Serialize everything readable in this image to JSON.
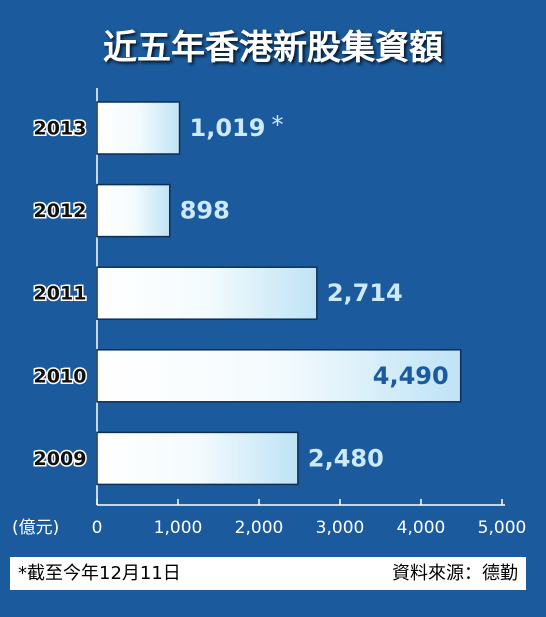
{
  "chart_data": {
    "type": "bar",
    "orientation": "horizontal",
    "title": "近五年香港新股集資額",
    "categories": [
      "2013",
      "2012",
      "2011",
      "2010",
      "2009"
    ],
    "values": [
      1019,
      898,
      2714,
      4490,
      2480
    ],
    "value_labels": [
      "1,019",
      "898",
      "2,714",
      "4,490",
      "2,480"
    ],
    "color": "#bfe3f5",
    "annotation": "*",
    "x_label": "(億元)",
    "xlim": [
      0,
      5000
    ],
    "xticks": [
      0,
      {
        "value": 1000,
        "label": "1,000"
      },
      {
        "value": 2000,
        "label": "2,000"
      },
      {
        "value": 3000,
        "label": "3,000"
      },
      {
        "value": 4000,
        "label": "4,000"
      },
      {
        "value": 5000,
        "label": "5,000"
      }
    ],
    "footnote": "*截至今年12月11日",
    "source": "資料來源：德勤"
  }
}
